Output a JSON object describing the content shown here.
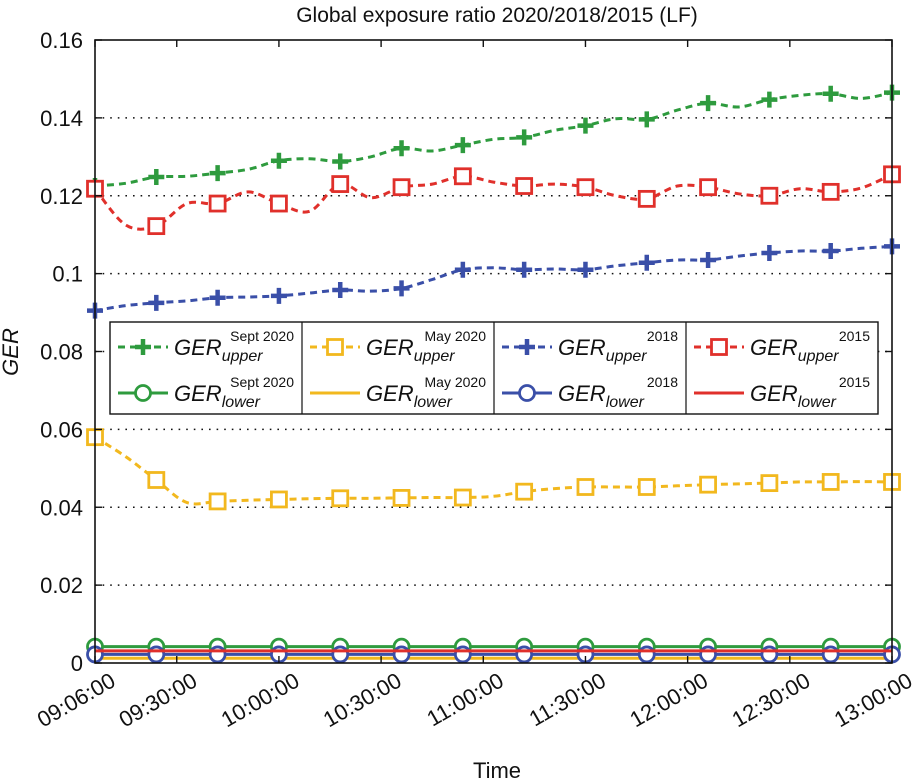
{
  "chart_data": {
    "type": "line",
    "title": "Global exposure ratio 2020/2018/2015 (LF)",
    "xlabel": "Time",
    "ylabel": "GER",
    "ylim": [
      0,
      0.16
    ],
    "yticks": [
      0,
      0.02,
      0.04,
      0.06,
      0.08,
      0.1,
      0.12,
      0.14,
      0.16
    ],
    "ytick_labels": [
      "0",
      "0.02",
      "0.04",
      "0.06",
      "0.08",
      "0.1",
      "0.12",
      "0.14",
      "0.16"
    ],
    "xlim_minutes": [
      546,
      780
    ],
    "xticks_minutes": [
      546,
      570,
      600,
      630,
      660,
      690,
      720,
      750,
      780
    ],
    "xtick_labels": [
      "09:06:00",
      "09:30:00",
      "10:00:00",
      "10:30:00",
      "11:00:00",
      "11:30:00",
      "12:00:00",
      "12:30:00",
      "13:00:00"
    ],
    "grid": "y-dotted",
    "legend_location": "center",
    "x": [
      546,
      555,
      564,
      573,
      582,
      591,
      600,
      609,
      618,
      627,
      636,
      645,
      654,
      663,
      672,
      681,
      690,
      699,
      708,
      717,
      726,
      735,
      744,
      753,
      762,
      771,
      780
    ],
    "marker_every": 2,
    "series": [
      {
        "name": "upper_sept2020",
        "legend_main": "GER",
        "legend_sub": "upper",
        "legend_sup": "Sept 2020",
        "color": "#2e9b3e",
        "dash": true,
        "marker": "plus",
        "values": [
          0.1225,
          0.1232,
          0.1248,
          0.125,
          0.1258,
          0.1268,
          0.129,
          0.1295,
          0.1288,
          0.13,
          0.1322,
          0.1315,
          0.133,
          0.1345,
          0.135,
          0.1368,
          0.138,
          0.1398,
          0.1396,
          0.142,
          0.1438,
          0.1428,
          0.1447,
          0.1458,
          0.1462,
          0.145,
          0.1465
        ]
      },
      {
        "name": "upper_may2020",
        "legend_main": "GER",
        "legend_sub": "upper",
        "legend_sup": "May 2020",
        "color": "#f2b81e",
        "dash": true,
        "marker": "square",
        "values": [
          0.058,
          0.053,
          0.047,
          0.0412,
          0.0415,
          0.0418,
          0.042,
          0.0422,
          0.0423,
          0.0423,
          0.0424,
          0.0425,
          0.0425,
          0.0428,
          0.044,
          0.0448,
          0.0452,
          0.0452,
          0.0452,
          0.0455,
          0.0458,
          0.046,
          0.0462,
          0.0465,
          0.0465,
          0.0466,
          0.0465
        ]
      },
      {
        "name": "upper_2018",
        "legend_main": "GER",
        "legend_sub": "upper",
        "legend_sup": "2018",
        "color": "#3a4fa8",
        "dash": true,
        "marker": "plus",
        "values": [
          0.0905,
          0.0918,
          0.0925,
          0.093,
          0.0938,
          0.094,
          0.0943,
          0.095,
          0.0958,
          0.0955,
          0.0962,
          0.0985,
          0.101,
          0.1015,
          0.101,
          0.1012,
          0.101,
          0.102,
          0.1028,
          0.1035,
          0.1035,
          0.1045,
          0.1053,
          0.1058,
          0.1058,
          0.1065,
          0.107
        ]
      },
      {
        "name": "upper_2015",
        "legend_main": "GER",
        "legend_sub": "upper",
        "legend_sup": "2015",
        "color": "#e0302b",
        "dash": true,
        "marker": "square",
        "values": [
          0.1218,
          0.1125,
          0.1122,
          0.118,
          0.118,
          0.121,
          0.118,
          0.116,
          0.123,
          0.1195,
          0.1222,
          0.123,
          0.125,
          0.1235,
          0.1225,
          0.123,
          0.1222,
          0.12,
          0.1192,
          0.1225,
          0.1222,
          0.1205,
          0.12,
          0.1218,
          0.121,
          0.122,
          0.1255
        ]
      },
      {
        "name": "lower_sept2020",
        "legend_main": "GER",
        "legend_sub": "lower",
        "legend_sup": "Sept 2020",
        "color": "#2e9b3e",
        "dash": false,
        "marker": "circle",
        "values": [
          0.0042,
          0.0042,
          0.0042,
          0.0042,
          0.0042,
          0.0042,
          0.0042,
          0.0042,
          0.0042,
          0.0042,
          0.0042,
          0.0042,
          0.0042,
          0.0042,
          0.0042,
          0.0042,
          0.0042,
          0.0042,
          0.0042,
          0.0042,
          0.0042,
          0.0042,
          0.0042,
          0.0042,
          0.0042,
          0.0042,
          0.0042
        ]
      },
      {
        "name": "lower_may2020",
        "legend_main": "GER",
        "legend_sub": "lower",
        "legend_sup": "May 2020",
        "color": "#f2b81e",
        "dash": false,
        "marker": "none",
        "values": [
          0.0012,
          0.0012,
          0.0012,
          0.0012,
          0.0012,
          0.0012,
          0.0012,
          0.0012,
          0.0012,
          0.0012,
          0.0012,
          0.0012,
          0.0012,
          0.0012,
          0.0012,
          0.0012,
          0.0012,
          0.0012,
          0.0012,
          0.0012,
          0.0012,
          0.0012,
          0.0012,
          0.0012,
          0.0012,
          0.0012,
          0.0012
        ]
      },
      {
        "name": "lower_2018",
        "legend_main": "GER",
        "legend_sub": "lower",
        "legend_sup": "2018",
        "color": "#3a4fa8",
        "dash": false,
        "marker": "circle",
        "values": [
          0.0022,
          0.0022,
          0.0022,
          0.0022,
          0.0022,
          0.0022,
          0.0022,
          0.0022,
          0.0022,
          0.0022,
          0.0022,
          0.0022,
          0.0022,
          0.0022,
          0.0022,
          0.0022,
          0.0022,
          0.0022,
          0.0022,
          0.0022,
          0.0022,
          0.0022,
          0.0022,
          0.0022,
          0.0022,
          0.0022,
          0.0022
        ]
      },
      {
        "name": "lower_2015",
        "legend_main": "GER",
        "legend_sub": "lower",
        "legend_sup": "2015",
        "color": "#e0302b",
        "dash": false,
        "marker": "none",
        "values": [
          0.0031,
          0.0031,
          0.0031,
          0.0031,
          0.0031,
          0.0031,
          0.0031,
          0.0031,
          0.0031,
          0.0031,
          0.0031,
          0.0031,
          0.0031,
          0.0031,
          0.0031,
          0.0031,
          0.0031,
          0.0031,
          0.0031,
          0.0031,
          0.0031,
          0.0031,
          0.0031,
          0.0031,
          0.0031,
          0.0031,
          0.0031
        ]
      }
    ]
  }
}
